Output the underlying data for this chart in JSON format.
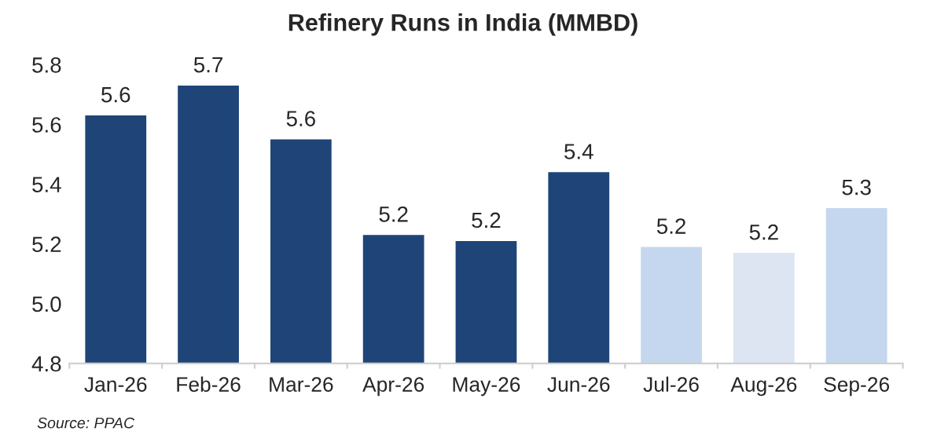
{
  "chart_data": {
    "type": "bar",
    "title": "Refinery Runs in India (MMBD)",
    "categories": [
      "Jan-26",
      "Feb-26",
      "Mar-26",
      "Apr-26",
      "May-26",
      "Jun-26",
      "Jul-26",
      "Aug-26",
      "Sep-26"
    ],
    "values": [
      5.63,
      5.73,
      5.55,
      5.23,
      5.21,
      5.44,
      5.19,
      5.17,
      5.32
    ],
    "value_labels": [
      "5.6",
      "5.7",
      "5.6",
      "5.2",
      "5.2",
      "5.4",
      "5.2",
      "5.2",
      "5.3"
    ],
    "colors": [
      "#1f4478",
      "#1f4478",
      "#1f4478",
      "#1f4478",
      "#1f4478",
      "#1f4478",
      "#c5d7ee",
      "#dce5f1",
      "#c5d7ee"
    ],
    "ylim": [
      4.8,
      5.8
    ],
    "yticks": [
      {
        "value": 4.8,
        "label": "4.8"
      },
      {
        "value": 5.0,
        "label": "5.0"
      },
      {
        "value": 5.2,
        "label": "5.2"
      },
      {
        "value": 5.4,
        "label": "5.4"
      },
      {
        "value": 5.6,
        "label": "5.6"
      },
      {
        "value": 5.8,
        "label": "5.8"
      }
    ],
    "grid": false,
    "annotations": [
      "Source: PPAC"
    ]
  }
}
